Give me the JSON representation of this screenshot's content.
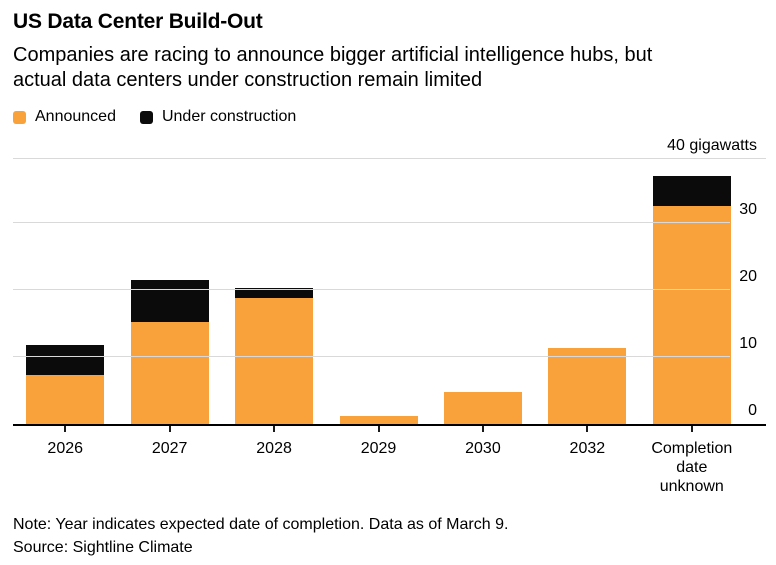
{
  "header": {
    "title": "US Data Center Build-Out",
    "subtitle": "Companies are racing to announce bigger artificial intelligence hubs, but\nactual data centers under construction remain limited"
  },
  "legend": [
    {
      "label": "Announced",
      "color": "#F9A23C"
    },
    {
      "label": "Under construction",
      "color": "#0B0B0B"
    }
  ],
  "chart_data": {
    "type": "bar",
    "stacked": true,
    "title": "US Data Center Build-Out",
    "unit_label": "40 gigawatts",
    "categories": [
      "2026",
      "2027",
      "2028",
      "2029",
      "2030",
      "2032",
      "Completion\ndate\nunknown"
    ],
    "series": [
      {
        "name": "Announced",
        "color": "#F9A23C",
        "values": [
          7.3,
          15.2,
          18.8,
          1.2,
          4.8,
          11.3,
          32.5
        ]
      },
      {
        "name": "Under construction",
        "color": "#0B0B0B",
        "values": [
          4.5,
          6.3,
          1.5,
          0,
          0,
          0,
          4.5
        ]
      }
    ],
    "ylim": [
      0,
      40
    ],
    "yticks": [
      0,
      10,
      20,
      30
    ],
    "grid": true,
    "gridline_color": "#d9d9d9",
    "axis_color": "#000000",
    "legend_position": "top-left"
  },
  "footer": {
    "note": "Note: Year indicates expected date of completion. Data as of March 9.",
    "source": "Source: Sightline Climate"
  }
}
